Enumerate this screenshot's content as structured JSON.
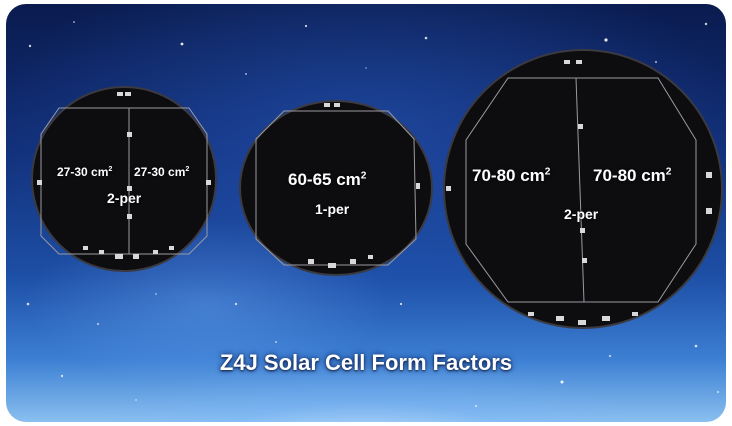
{
  "caption": "Z4J Solar Cell Form Factors",
  "wafers": [
    {
      "left_area": "27-30 cm",
      "left_area_sup": "2",
      "right_area": "27-30 cm",
      "right_area_sup": "2",
      "per": "2-per"
    },
    {
      "area": "60-65 cm",
      "area_sup": "2",
      "per": "1-per"
    },
    {
      "left_area": "70-80 cm",
      "left_area_sup": "2",
      "right_area": "70-80 cm",
      "right_area_sup": "2",
      "per": "2-per"
    }
  ],
  "colors": {
    "wafer": "#0d0d10",
    "rim": "#3a3a40",
    "pad": "#d8d8d8",
    "background_top": "#0a1b4e",
    "background_bottom": "#8ac0f0"
  }
}
